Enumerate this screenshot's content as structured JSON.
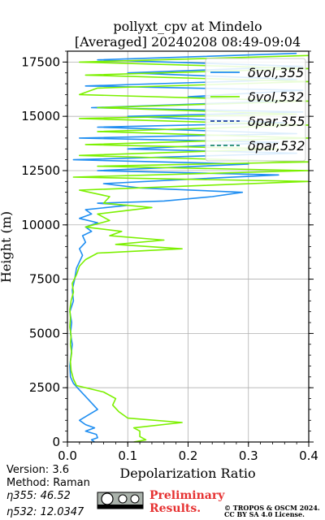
{
  "chart_data": {
    "type": "line",
    "title": "pollyxt_cpv at Mindelo",
    "subtitle": "[Averaged] 20240208 08:49-09:04",
    "xlabel": "Depolarization Ratio",
    "ylabel": "Height (m)",
    "xlim": [
      0,
      0.4
    ],
    "ylim": [
      0,
      18000
    ],
    "xticks": [
      "0.0",
      "0.1",
      "0.2",
      "0.3",
      "0.4"
    ],
    "yticks": [
      "0",
      "2500",
      "5000",
      "7500",
      "10000",
      "12500",
      "15000",
      "17500"
    ],
    "grid": true,
    "legend_position": "top-right",
    "series": [
      {
        "name": "δvol,355",
        "color": "#1f8ef1",
        "dash": "solid",
        "points": [
          [
            0.045,
            0
          ],
          [
            0.04,
            100
          ],
          [
            0.05,
            200
          ],
          [
            0.048,
            350
          ],
          [
            0.03,
            500
          ],
          [
            0.045,
            650
          ],
          [
            0.03,
            800
          ],
          [
            0.02,
            1000
          ],
          [
            0.035,
            1250
          ],
          [
            0.05,
            1500
          ],
          [
            0.04,
            1800
          ],
          [
            0.03,
            2100
          ],
          [
            0.02,
            2400
          ],
          [
            0.01,
            2700
          ],
          [
            0.005,
            3000
          ],
          [
            0.004,
            3500
          ],
          [
            0.006,
            4000
          ],
          [
            0.008,
            4500
          ],
          [
            0.005,
            5000
          ],
          [
            0.007,
            5500
          ],
          [
            0.004,
            6000
          ],
          [
            0.01,
            6500
          ],
          [
            0.008,
            7000
          ],
          [
            0.012,
            7500
          ],
          [
            0.015,
            8000
          ],
          [
            0.02,
            8300
          ],
          [
            0.025,
            8600
          ],
          [
            0.02,
            8900
          ],
          [
            0.03,
            9200
          ],
          [
            0.025,
            9500
          ],
          [
            0.04,
            9700
          ],
          [
            0.03,
            9900
          ],
          [
            0.05,
            10100
          ],
          [
            0.02,
            10300
          ],
          [
            0.04,
            10500
          ],
          [
            0.03,
            10700
          ],
          [
            0.1,
            10900
          ],
          [
            0.05,
            11000
          ],
          [
            0.16,
            11100
          ],
          [
            0.24,
            11300
          ],
          [
            0.29,
            11500
          ],
          [
            0.12,
            11700
          ],
          [
            0.06,
            11900
          ],
          [
            0.2,
            12100
          ],
          [
            0.35,
            12300
          ],
          [
            0.05,
            12500
          ],
          [
            0.3,
            12800
          ],
          [
            0.01,
            13000
          ],
          [
            0.38,
            13300
          ],
          [
            0.1,
            13500
          ],
          [
            0.35,
            13800
          ],
          [
            0.02,
            14000
          ],
          [
            0.38,
            14200
          ],
          [
            0.05,
            14500
          ],
          [
            0.36,
            14700
          ],
          [
            0.1,
            15000
          ],
          [
            0.39,
            15200
          ],
          [
            0.04,
            15400
          ],
          [
            0.35,
            15700
          ],
          [
            0.2,
            15900
          ],
          [
            0.39,
            16200
          ],
          [
            0.03,
            16400
          ],
          [
            0.38,
            16700
          ],
          [
            0.1,
            17000
          ],
          [
            0.39,
            17300
          ],
          [
            0.05,
            17600
          ],
          [
            0.38,
            17900
          ]
        ]
      },
      {
        "name": "δvol,532",
        "color": "#7cf000",
        "dash": "solid",
        "points": [
          [
            0.11,
            0
          ],
          [
            0.13,
            100
          ],
          [
            0.12,
            250
          ],
          [
            0.12,
            500
          ],
          [
            0.11,
            650
          ],
          [
            0.19,
            900
          ],
          [
            0.1,
            1100
          ],
          [
            0.085,
            1400
          ],
          [
            0.075,
            1700
          ],
          [
            0.08,
            2000
          ],
          [
            0.06,
            2300
          ],
          [
            0.015,
            2600
          ],
          [
            0.01,
            2900
          ],
          [
            0.006,
            3300
          ],
          [
            0.005,
            3700
          ],
          [
            0.007,
            4100
          ],
          [
            0.005,
            4500
          ],
          [
            0.006,
            4900
          ],
          [
            0.004,
            5300
          ],
          [
            0.005,
            5700
          ],
          [
            0.004,
            6100
          ],
          [
            0.006,
            6500
          ],
          [
            0.01,
            6900
          ],
          [
            0.008,
            7300
          ],
          [
            0.015,
            7700
          ],
          [
            0.02,
            8100
          ],
          [
            0.03,
            8400
          ],
          [
            0.05,
            8700
          ],
          [
            0.19,
            8900
          ],
          [
            0.08,
            9100
          ],
          [
            0.16,
            9300
          ],
          [
            0.07,
            9500
          ],
          [
            0.09,
            9700
          ],
          [
            0.03,
            9900
          ],
          [
            0.07,
            10200
          ],
          [
            0.05,
            10500
          ],
          [
            0.14,
            10800
          ],
          [
            0.06,
            11000
          ],
          [
            0.07,
            11300
          ],
          [
            0.02,
            11600
          ],
          [
            0.4,
            12000
          ],
          [
            0.01,
            12200
          ],
          [
            0.4,
            12500
          ],
          [
            0.05,
            12700
          ],
          [
            0.4,
            12900
          ],
          [
            0.02,
            13200
          ],
          [
            0.35,
            13500
          ],
          [
            0.03,
            13700
          ],
          [
            0.4,
            14000
          ],
          [
            0.05,
            14300
          ],
          [
            0.4,
            14600
          ],
          [
            0.02,
            14900
          ],
          [
            0.38,
            15100
          ],
          [
            0.05,
            15400
          ],
          [
            0.4,
            15700
          ],
          [
            0.02,
            16000
          ],
          [
            0.05,
            16300
          ],
          [
            0.4,
            16600
          ],
          [
            0.03,
            16900
          ],
          [
            0.4,
            17200
          ],
          [
            0.02,
            17500
          ],
          [
            0.4,
            17800
          ]
        ]
      },
      {
        "name": "δpar,355",
        "color": "#1a3fa0",
        "dash": "dashed",
        "points": []
      },
      {
        "name": "δpar,532",
        "color": "#1e8a6e",
        "dash": "dashed",
        "points": []
      }
    ]
  },
  "footer": {
    "version": "Version: 3.6",
    "method": "Method: Raman",
    "eta355": "η355:  46.52",
    "eta532": "η532: 12.0347",
    "preliminary_line1": "Preliminary",
    "preliminary_line2": "Results.",
    "preliminary_color": "#e63232",
    "copyright_line1": "© TROPOS & OSCM 2024.",
    "copyright_line2": "CC BY SA 4.0 License.",
    "cc_badge": "cc-by-sa-badge"
  }
}
